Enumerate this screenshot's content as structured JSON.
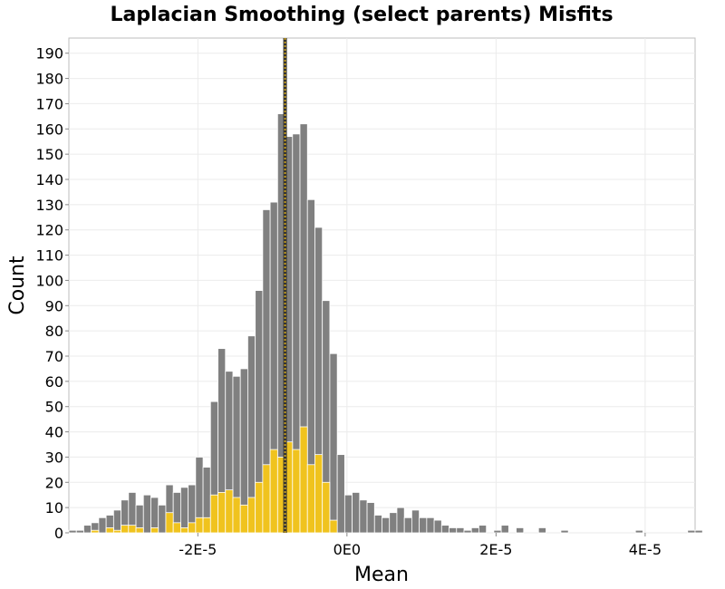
{
  "chart_data": {
    "type": "bar",
    "title": "Laplacian Smoothing (select parents) Misfits",
    "xlabel": "Mean",
    "ylabel": "Count",
    "xlim": [
      -3.73e-05,
      4.67e-05
    ],
    "ylim": [
      0,
      196
    ],
    "bin_start": -3.73e-05,
    "bin_width": 1e-06,
    "xticks": [
      -2e-05,
      0,
      2e-05,
      4e-05
    ],
    "xtick_labels": [
      "-2E-5",
      "0E0",
      "2E-5",
      "4E-5"
    ],
    "yticks": [
      0,
      10,
      20,
      30,
      40,
      50,
      60,
      70,
      80,
      90,
      100,
      110,
      120,
      130,
      140,
      150,
      160,
      170,
      180,
      190
    ],
    "grid": true,
    "vline_x": -8.3e-06,
    "colors": {
      "all": "#808080",
      "selected": "#f0c31e",
      "vline_dark": "#333333",
      "vline_light": "#c8a020"
    },
    "series": [
      {
        "values": [
          1,
          1,
          3,
          4,
          6,
          7,
          9,
          13,
          16,
          11,
          15,
          14,
          11,
          19,
          16,
          18,
          19,
          30,
          26,
          52,
          73,
          64,
          62,
          65,
          78,
          96,
          128,
          131,
          166,
          157,
          158,
          162,
          132,
          121,
          92,
          71,
          31,
          15,
          16,
          13,
          12,
          7,
          6,
          8,
          10,
          6,
          9,
          6,
          6,
          5,
          3,
          2,
          2,
          1,
          2,
          3,
          0,
          1,
          3,
          0,
          2,
          0,
          0,
          2,
          0,
          0,
          1,
          0,
          0,
          0,
          0,
          0,
          0,
          0,
          0,
          0,
          1,
          0,
          0,
          0,
          0,
          0,
          0,
          1,
          1
        ]
      },
      {
        "values": [
          0,
          0,
          0,
          1,
          0,
          2,
          1,
          3,
          3,
          2,
          0,
          2,
          0,
          8,
          4,
          2,
          4,
          6,
          6,
          15,
          16,
          17,
          14,
          11,
          14,
          20,
          27,
          33,
          30,
          36,
          33,
          42,
          27,
          31,
          20,
          5,
          0,
          0,
          0,
          0,
          0,
          0,
          0,
          0,
          0,
          0,
          0,
          0,
          0,
          0,
          0,
          0,
          0,
          0,
          0,
          0,
          0,
          0,
          0,
          0,
          0,
          0,
          0,
          0,
          0,
          0,
          0,
          0,
          0,
          0,
          0,
          0,
          0,
          0,
          0,
          0,
          0,
          0,
          0,
          0,
          0,
          0,
          0,
          0,
          0
        ]
      }
    ]
  }
}
